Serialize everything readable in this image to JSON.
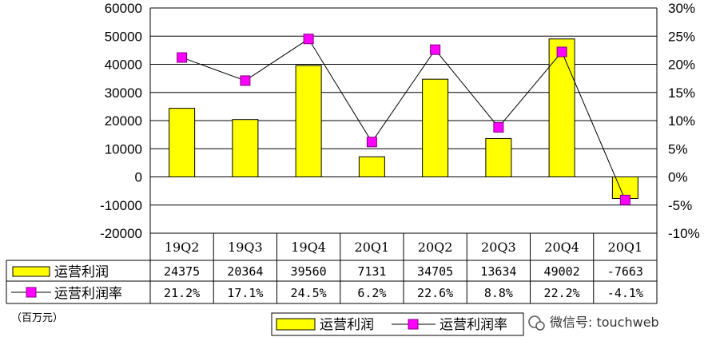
{
  "chart_data": {
    "type": "bar",
    "categories": [
      "19Q2",
      "19Q3",
      "19Q4",
      "20Q1",
      "20Q2",
      "20Q3",
      "20Q4",
      "20Q1"
    ],
    "series": [
      {
        "name": "运营利润",
        "kind": "bar",
        "axis": "left",
        "color": "#ffff00",
        "values": [
          24375,
          20364,
          39560,
          7131,
          34705,
          13634,
          49002,
          -7663
        ],
        "labels": [
          "24375",
          "20364",
          "39560",
          "7131",
          "34705",
          "13634",
          "49002",
          "-7663"
        ]
      },
      {
        "name": "运营利润率",
        "kind": "line",
        "axis": "right",
        "color": "#ff00ff",
        "values": [
          21.2,
          17.1,
          24.5,
          6.2,
          22.6,
          8.8,
          22.2,
          -4.1
        ],
        "labels": [
          "21.2%",
          "17.1%",
          "24.5%",
          "6.2%",
          "22.6%",
          "8.8%",
          "22.2%",
          "-4.1%"
        ]
      }
    ],
    "ylim": [
      -20000,
      60000
    ],
    "y_ticks": [
      "60000",
      "50000",
      "40000",
      "30000",
      "20000",
      "10000",
      "0",
      "-10000",
      "-20000"
    ],
    "y2lim": [
      -10,
      30
    ],
    "y2_ticks": [
      "30%",
      "25%",
      "20%",
      "15%",
      "10%",
      "5%",
      "0%",
      "-5%",
      "-10%"
    ],
    "grid": true,
    "legend": "bottom",
    "data_table": true
  },
  "unit_note": "（百万元）",
  "watermark": "微信号: touchweb"
}
